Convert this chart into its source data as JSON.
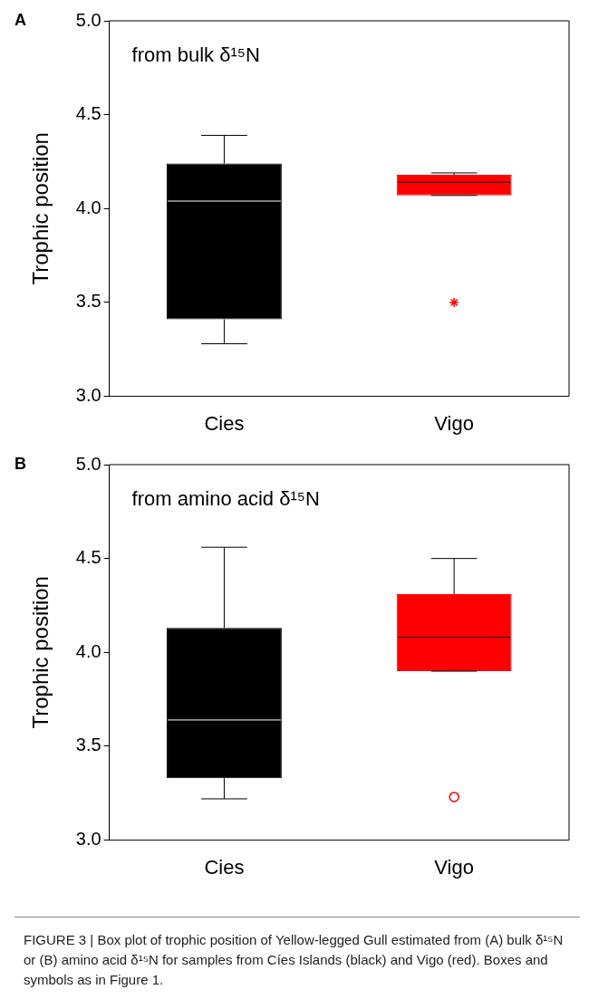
{
  "chart_data": [
    {
      "type": "box",
      "title": "A",
      "ylabel": "Trophic position",
      "categories": [
        "Cies",
        "Vigo"
      ],
      "colors": [
        "#000000",
        "#ff0000"
      ],
      "marker": "star",
      "boxes": [
        {
          "low": 3.28,
          "q1": 3.41,
          "median": 4.04,
          "q3": 4.24,
          "high": 4.39
        },
        {
          "low": 4.07,
          "q1": 4.07,
          "median": 4.14,
          "q3": 4.18,
          "high": 4.19,
          "outliers": [
            3.5
          ]
        }
      ],
      "ylim": [
        3.0,
        5.0
      ],
      "yticks": [
        {
          "value": 3,
          "label": "3.0"
        },
        {
          "value": 3.5,
          "label": "3.5"
        },
        {
          "value": 4,
          "label": "4.0"
        },
        {
          "value": 4.5,
          "label": "4.5"
        },
        {
          "value": 5,
          "label": "5.0"
        }
      ],
      "annotations": [
        "from bulk δ¹⁵N"
      ]
    },
    {
      "type": "box",
      "title": "B",
      "ylabel": "Trophic position",
      "categories": [
        "Cies",
        "Vigo"
      ],
      "colors": [
        "#000000",
        "#ff0000"
      ],
      "marker": "circle",
      "boxes": [
        {
          "low": 3.22,
          "q1": 3.33,
          "median": 3.64,
          "q3": 4.13,
          "high": 4.56
        },
        {
          "low": 3.9,
          "q1": 3.9,
          "median": 4.08,
          "q3": 4.31,
          "high": 4.5,
          "outliers": [
            3.23
          ]
        }
      ],
      "ylim": [
        3.0,
        5.0
      ],
      "yticks": [
        {
          "value": 3,
          "label": "3.0"
        },
        {
          "value": 3.5,
          "label": "3.5"
        },
        {
          "value": 4,
          "label": "4.0"
        },
        {
          "value": 4.5,
          "label": "4.5"
        },
        {
          "value": 5,
          "label": "5.0"
        }
      ],
      "annotations": [
        "from amino acid δ¹⁵N",
        "FIGURE 3 | Box plot of trophic position of Yellow-legged Gull estimated from (A) bulk δ¹⁵N or (B) amino acid δ¹⁵N for samples from Cíes Islands (black) and Vigo (red). Boxes and symbols as in Figure 1."
      ]
    }
  ]
}
